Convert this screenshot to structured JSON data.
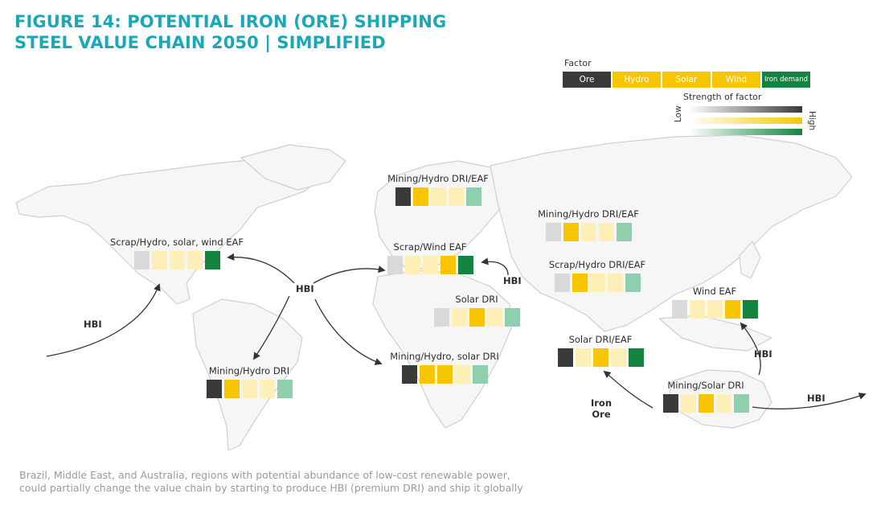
{
  "title_line1": "FIGURE 14: POTENTIAL IRON (ORE) SHIPPING",
  "title_line2": "STEEL VALUE CHAIN 2050 | SIMPLIFIED",
  "legend": {
    "title": "Factor",
    "factors": [
      {
        "label": "Ore",
        "color": "#3a3a3a"
      },
      {
        "label": "Hydro",
        "color": "#f7c600"
      },
      {
        "label": "Solar",
        "color": "#f7c600"
      },
      {
        "label": "Wind",
        "color": "#f7c600"
      },
      {
        "label": "Iron demand",
        "color": "#12843f"
      }
    ],
    "strength_title": "Strength of factor",
    "low_label": "Low",
    "high_label": "High"
  },
  "strength_palettes": {
    "ore": [
      "#d9d9d9",
      "#3a3a3a"
    ],
    "yellow": [
      "#fdefb5",
      "#f7c600"
    ],
    "green": [
      "#8fcfae",
      "#12843f"
    ]
  },
  "regions": [
    {
      "id": "north-america",
      "label": "Scrap/Hydro, solar, wind EAF",
      "levels": [
        0,
        1,
        1,
        1,
        2
      ]
    },
    {
      "id": "south-america",
      "label": "Mining/Hydro DRI",
      "levels": [
        2,
        2,
        1,
        1,
        1
      ]
    },
    {
      "id": "scandinavia",
      "label": "Mining/Hydro DRI/EAF",
      "levels": [
        2,
        2,
        1,
        1,
        1
      ]
    },
    {
      "id": "europe",
      "label": "Scrap/Wind EAF",
      "levels": [
        0,
        1,
        1,
        2,
        2
      ]
    },
    {
      "id": "middle-east",
      "label": "Solar DRI",
      "levels": [
        0,
        1,
        2,
        1,
        1
      ]
    },
    {
      "id": "southern-africa",
      "label": "Mining/Hydro, solar DRI",
      "levels": [
        2,
        2,
        2,
        1,
        1
      ]
    },
    {
      "id": "russia",
      "label": "Mining/Hydro DRI/EAF",
      "levels": [
        0,
        2,
        1,
        1,
        1
      ]
    },
    {
      "id": "central-asia",
      "label": "Scrap/Hydro DRI/EAF",
      "levels": [
        0,
        2,
        1,
        1,
        1
      ]
    },
    {
      "id": "india",
      "label": "Solar DRI/EAF",
      "levels": [
        2,
        1,
        2,
        1,
        2
      ]
    },
    {
      "id": "east-asia",
      "label": "Wind EAF",
      "levels": [
        0,
        1,
        1,
        2,
        2
      ]
    },
    {
      "id": "australia",
      "label": "Mining/Solar DRI",
      "levels": [
        2,
        1,
        2,
        1,
        1
      ]
    }
  ],
  "flows": [
    {
      "id": "hbi-atlantic",
      "label": "HBI"
    },
    {
      "id": "hbi-brazil",
      "label": "HBI"
    },
    {
      "id": "hbi-europe",
      "label": "HBI"
    },
    {
      "id": "hbi-asia",
      "label": "HBI"
    },
    {
      "id": "hbi-pacific",
      "label": "HBI"
    },
    {
      "id": "iron-ore",
      "label": "Iron Ore"
    }
  ],
  "footnote_line1": "Brazil, Middle East, and Australia, regions with potential abundance of low-cost renewable power,",
  "footnote_line2": "could partially change the value chain by starting to produce HBI (premium DRI) and ship it globally"
}
